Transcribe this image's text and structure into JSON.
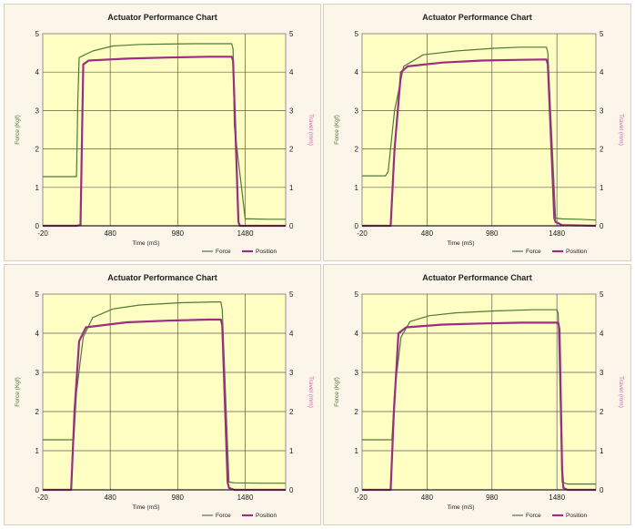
{
  "colors": {
    "panel_bg": "#fcf5e9",
    "plot_bg": "#ffffc4",
    "grid": "#5a5a5a",
    "force": "#4d7a37",
    "position": "#9b2e83",
    "ylabel_left": "#4d7a37",
    "ylabel_right": "#d85fb0"
  },
  "chart_data": [
    {
      "type": "line",
      "title": "Actuator Performance Chart",
      "xlabel": "Time (mS)",
      "ylabel": "Force (Kgf)",
      "y2label": "Travel (mm)",
      "x_ticks": [
        "-20",
        "480",
        "980",
        "1480"
      ],
      "xlim": [
        -20,
        1780
      ],
      "ylim": [
        0,
        5
      ],
      "y2lim": [
        0,
        5
      ],
      "y_ticks": [
        "0",
        "1",
        "2",
        "3",
        "4",
        "5"
      ],
      "y2_ticks": [
        "0",
        "1",
        "2",
        "3",
        "4",
        "5"
      ],
      "grid": true,
      "legend": "bottom-right",
      "series": [
        {
          "name": "Force",
          "x": [
            -20,
            230,
            240,
            250,
            350,
            500,
            700,
            900,
            1100,
            1380,
            1390,
            1400,
            1480,
            1520,
            1650,
            1780
          ],
          "y": [
            1.28,
            1.28,
            3.3,
            4.38,
            4.55,
            4.68,
            4.72,
            4.73,
            4.74,
            4.74,
            4.6,
            2.6,
            0.18,
            0.18,
            0.17,
            0.17
          ]
        },
        {
          "name": "Position",
          "x": [
            -20,
            230,
            260,
            280,
            320,
            600,
            900,
            1200,
            1380,
            1390,
            1430,
            1440,
            1480,
            1780
          ],
          "y": [
            0.0,
            0.0,
            0.02,
            4.2,
            4.3,
            4.35,
            4.38,
            4.4,
            4.4,
            4.3,
            0.1,
            0.0,
            0.0,
            0.0
          ]
        }
      ],
      "legend_labels": [
        "Force",
        "Position"
      ]
    },
    {
      "type": "line",
      "title": "Actuator Performance Chart",
      "xlabel": "Time (mS)",
      "ylabel": "Force (Kgf)",
      "y2label": "Travel (mm)",
      "x_ticks": [
        "-20",
        "480",
        "980",
        "1480"
      ],
      "xlim": [
        -20,
        1780
      ],
      "ylim": [
        0,
        5
      ],
      "y2lim": [
        0,
        5
      ],
      "y_ticks": [
        "0",
        "1",
        "2",
        "3",
        "4",
        "5"
      ],
      "y2_ticks": [
        "0",
        "1",
        "2",
        "3",
        "4",
        "5"
      ],
      "grid": true,
      "legend": "bottom-right",
      "series": [
        {
          "name": "Force",
          "x": [
            -20,
            160,
            180,
            230,
            300,
            450,
            700,
            1000,
            1200,
            1400,
            1410,
            1470,
            1520,
            1650,
            1780
          ],
          "y": [
            1.3,
            1.3,
            1.4,
            3.0,
            4.15,
            4.45,
            4.55,
            4.62,
            4.65,
            4.65,
            4.5,
            0.2,
            0.18,
            0.17,
            0.15
          ]
        },
        {
          "name": "Position",
          "x": [
            -20,
            200,
            230,
            280,
            330,
            600,
            900,
            1200,
            1400,
            1410,
            1460,
            1470,
            1520,
            1780
          ],
          "y": [
            0.0,
            0.0,
            2.0,
            4.0,
            4.15,
            4.25,
            4.3,
            4.32,
            4.33,
            4.2,
            0.2,
            0.1,
            0.02,
            0.0
          ]
        }
      ],
      "legend_labels": [
        "Force",
        "Position"
      ]
    },
    {
      "type": "line",
      "title": "Actuator Performance Chart",
      "xlabel": "Time (mS)",
      "ylabel": "Force (Kgf)",
      "y2label": "Travel (mm)",
      "x_ticks": [
        "-20",
        "480",
        "980",
        "1480"
      ],
      "xlim": [
        -20,
        1780
      ],
      "ylim": [
        0,
        5
      ],
      "y2lim": [
        0,
        5
      ],
      "y_ticks": [
        "0",
        "1",
        "2",
        "3",
        "4",
        "5"
      ],
      "y2_ticks": [
        "0",
        "1",
        "2",
        "3",
        "4",
        "5"
      ],
      "grid": true,
      "legend": "bottom-right",
      "series": [
        {
          "name": "Force",
          "x": [
            -20,
            210,
            230,
            280,
            350,
            500,
            700,
            1000,
            1250,
            1300,
            1310,
            1360,
            1400,
            1600,
            1780
          ],
          "y": [
            1.28,
            1.28,
            2.5,
            3.9,
            4.4,
            4.62,
            4.72,
            4.78,
            4.8,
            4.8,
            4.6,
            0.2,
            0.18,
            0.17,
            0.17
          ]
        },
        {
          "name": "Position",
          "x": [
            -20,
            190,
            215,
            250,
            300,
            600,
            900,
            1200,
            1300,
            1310,
            1350,
            1360,
            1400,
            1780
          ],
          "y": [
            0.0,
            0.0,
            2.0,
            3.8,
            4.15,
            4.28,
            4.32,
            4.35,
            4.35,
            4.2,
            0.2,
            0.05,
            0.0,
            0.0
          ]
        }
      ],
      "legend_labels": [
        "Force",
        "Position"
      ]
    },
    {
      "type": "line",
      "title": "Actuator Performance Chart",
      "xlabel": "Time (mS)",
      "ylabel": "Force (Kgf)",
      "y2label": "Travel (mm)",
      "x_ticks": [
        "-20",
        "480",
        "980",
        "1480"
      ],
      "xlim": [
        -20,
        1780
      ],
      "ylim": [
        0,
        5
      ],
      "y2lim": [
        0,
        5
      ],
      "y_ticks": [
        "0",
        "1",
        "2",
        "3",
        "4",
        "5"
      ],
      "y2_ticks": [
        "0",
        "1",
        "2",
        "3",
        "4",
        "5"
      ],
      "grid": true,
      "legend": "bottom-right",
      "series": [
        {
          "name": "Force",
          "x": [
            -20,
            210,
            230,
            280,
            350,
            500,
            700,
            1000,
            1300,
            1480,
            1490,
            1520,
            1560,
            1650,
            1780
          ],
          "y": [
            1.28,
            1.28,
            2.5,
            3.9,
            4.3,
            4.45,
            4.52,
            4.57,
            4.6,
            4.6,
            4.5,
            0.2,
            0.15,
            0.15,
            0.15
          ]
        },
        {
          "name": "Position",
          "x": [
            -20,
            200,
            225,
            260,
            320,
            600,
            900,
            1200,
            1490,
            1500,
            1520,
            1530,
            1560,
            1780
          ],
          "y": [
            0.0,
            0.0,
            2.0,
            4.0,
            4.15,
            4.22,
            4.25,
            4.27,
            4.27,
            4.1,
            0.5,
            0.05,
            0.0,
            0.0
          ]
        }
      ],
      "legend_labels": [
        "Force",
        "Position"
      ]
    }
  ]
}
